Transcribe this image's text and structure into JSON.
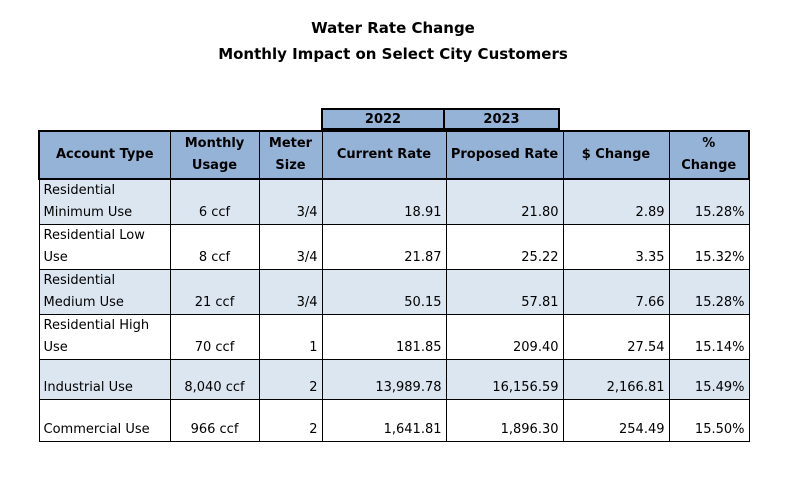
{
  "title": "Water Rate Change",
  "subtitle": "Monthly Impact on Select City Customers",
  "year_headers": [
    "2022",
    "2023"
  ],
  "columns": [
    "Account Type",
    "Monthly Usage",
    "Meter Size",
    "Current Rate",
    "Proposed Rate",
    "$ Change",
    "% Change"
  ],
  "rows": [
    {
      "account": "Residential Minimum Use",
      "usage": "6 ccf",
      "meter": "3/4",
      "current": "18.91",
      "proposed": "21.80",
      "change": "2.89",
      "pct": "15.28%"
    },
    {
      "account": "Residential Low Use",
      "usage": "8 ccf",
      "meter": "3/4",
      "current": "21.87",
      "proposed": "25.22",
      "change": "3.35",
      "pct": "15.32%"
    },
    {
      "account": "Residential Medium Use",
      "usage": "21 ccf",
      "meter": "3/4",
      "current": "50.15",
      "proposed": "57.81",
      "change": "7.66",
      "pct": "15.28%"
    },
    {
      "account": "Residential High Use",
      "usage": "70 ccf",
      "meter": "1",
      "current": "181.85",
      "proposed": "209.40",
      "change": "27.54",
      "pct": "15.14%"
    },
    {
      "account": "Industrial Use",
      "usage": "8,040 ccf",
      "meter": "2",
      "current": "13,989.78",
      "proposed": "16,156.59",
      "change": "2,166.81",
      "pct": "15.49%"
    },
    {
      "account": "Commercial Use",
      "usage": "966 ccf",
      "meter": "2",
      "current": "1,641.81",
      "proposed": "1,896.30",
      "change": "254.49",
      "pct": "15.50%"
    }
  ],
  "colors": {
    "header_fill": "#95b3d7",
    "row_shade": "#dce6f1"
  }
}
